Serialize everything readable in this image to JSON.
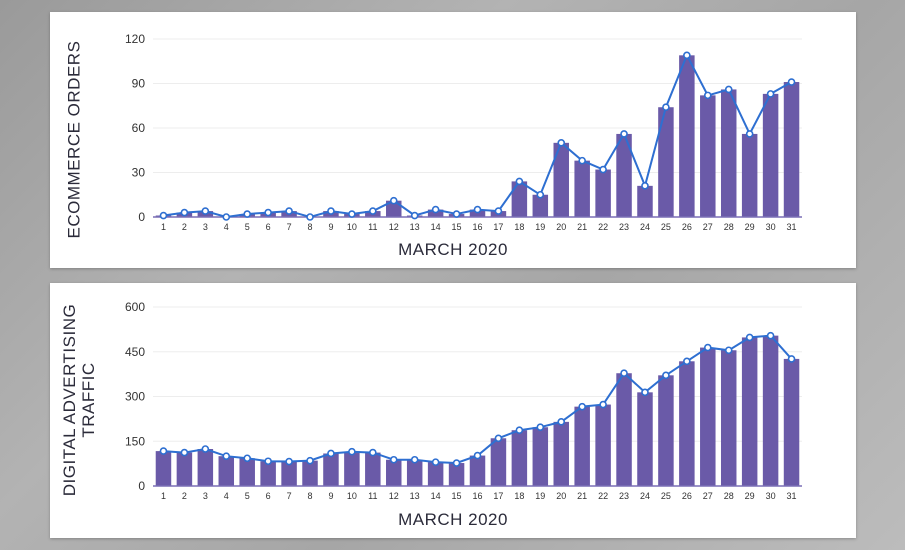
{
  "colors": {
    "bar": "#6a5aa8",
    "line": "#2e6fd1",
    "axis": "#7a6fb5",
    "grid": "#ededed"
  },
  "chart_data": [
    {
      "type": "bar",
      "ylabel": "ECOMMERCE ORDERS",
      "xlabel": "MARCH 2020",
      "ylim": [
        0,
        120
      ],
      "yticks": [
        0,
        30,
        60,
        90,
        120
      ],
      "categories": [
        "1",
        "2",
        "3",
        "4",
        "5",
        "6",
        "7",
        "8",
        "9",
        "10",
        "11",
        "12",
        "13",
        "14",
        "15",
        "16",
        "17",
        "18",
        "19",
        "20",
        "21",
        "22",
        "23",
        "24",
        "25",
        "26",
        "27",
        "28",
        "29",
        "30",
        "31"
      ],
      "values": [
        1,
        3,
        4,
        0,
        2,
        3,
        4,
        0,
        4,
        2,
        4,
        11,
        1,
        5,
        2,
        5,
        4,
        24,
        15,
        50,
        38,
        32,
        56,
        21,
        74,
        109,
        82,
        86,
        56,
        83,
        91
      ],
      "line_overlay": true,
      "grid": true
    },
    {
      "type": "bar",
      "ylabel": "DIGITAL ADVERTISING TRAFFIC",
      "xlabel": "MARCH 2020",
      "ylim": [
        0,
        600
      ],
      "yticks": [
        0,
        150,
        300,
        450,
        600
      ],
      "categories": [
        "1",
        "2",
        "3",
        "4",
        "5",
        "6",
        "7",
        "8",
        "9",
        "10",
        "11",
        "12",
        "13",
        "14",
        "15",
        "16",
        "17",
        "18",
        "19",
        "20",
        "21",
        "22",
        "23",
        "24",
        "25",
        "26",
        "27",
        "28",
        "29",
        "30",
        "31"
      ],
      "values": [
        117,
        112,
        124,
        100,
        93,
        83,
        82,
        85,
        109,
        115,
        112,
        88,
        88,
        80,
        77,
        102,
        160,
        187,
        197,
        215,
        266,
        273,
        378,
        314,
        371,
        418,
        464,
        455,
        498,
        504,
        426
      ],
      "line_overlay": true,
      "grid": true
    }
  ]
}
